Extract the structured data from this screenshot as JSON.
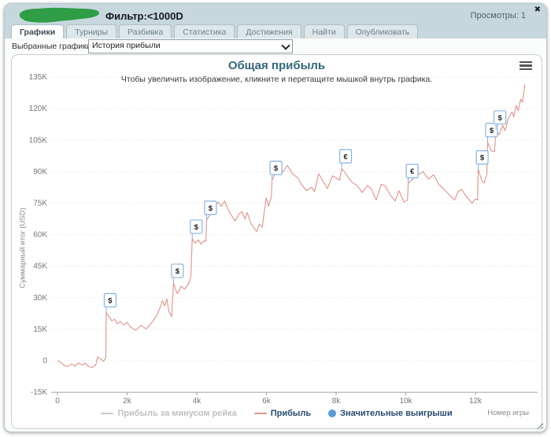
{
  "header": {
    "redacted_name": "(закрашенное имя игрока)",
    "filter": "Фильтр:<1000D",
    "views": "Просмотры: 1",
    "close_glyph": "✖"
  },
  "tabs": {
    "items": [
      {
        "label": "Графики",
        "active": true
      },
      {
        "label": "Турниры",
        "active": false
      },
      {
        "label": "Разбивка",
        "active": false
      },
      {
        "label": "Статистика",
        "active": false
      },
      {
        "label": "Достижения",
        "active": false
      },
      {
        "label": "Найти",
        "active": false
      },
      {
        "label": "Опубликовать",
        "active": false
      }
    ]
  },
  "chart_picker": {
    "label": "Выбранные графики:",
    "selected": "История прибыли"
  },
  "chart_data": {
    "type": "line",
    "title": "Общая прибыль",
    "subtitle": "Чтобы увеличить изображение, кликните и перетащите мышкой внутрь графика.",
    "xlabel": "Номер игры",
    "ylabel": "Суммарный итог (USD)",
    "xlim": [
      0,
      13600
    ],
    "ylim": [
      -15000,
      135000
    ],
    "x_tick_values": [
      0,
      2000,
      4000,
      6000,
      8000,
      10000,
      12000
    ],
    "x_ticks": [
      "0",
      "2k",
      "4k",
      "6k",
      "8k",
      "10k",
      "12k"
    ],
    "y_tick_values": [
      -15000,
      0,
      15000,
      30000,
      45000,
      60000,
      75000,
      90000,
      105000,
      120000,
      135000
    ],
    "y_ticks": [
      "-15K",
      "0",
      "15K",
      "30K",
      "45K",
      "60K",
      "75K",
      "90K",
      "105K",
      "120K",
      "135K"
    ],
    "grid": "horizontal-dotted",
    "legend_position": "bottom",
    "series": [
      {
        "name": "Прибыль за минусом рейка",
        "color": "#c8c8c8",
        "visible": false,
        "points": []
      },
      {
        "name": "Прибыль",
        "color": "#e09289",
        "visible": true,
        "points": [
          [
            0,
            0
          ],
          [
            100,
            -800
          ],
          [
            200,
            -2200
          ],
          [
            300,
            -2800
          ],
          [
            400,
            -1500
          ],
          [
            500,
            -2500
          ],
          [
            600,
            -1000
          ],
          [
            700,
            -2000
          ],
          [
            800,
            -1200
          ],
          [
            900,
            -2800
          ],
          [
            1000,
            -3200
          ],
          [
            1100,
            -2000
          ],
          [
            1150,
            1800
          ],
          [
            1250,
            800
          ],
          [
            1320,
            -300
          ],
          [
            1390,
            1500
          ],
          [
            1400,
            23000
          ],
          [
            1480,
            21000
          ],
          [
            1560,
            19000
          ],
          [
            1640,
            19800
          ],
          [
            1720,
            17500
          ],
          [
            1800,
            18800
          ],
          [
            1900,
            17000
          ],
          [
            2000,
            18200
          ],
          [
            2100,
            16000
          ],
          [
            2250,
            14500
          ],
          [
            2400,
            16800
          ],
          [
            2550,
            15200
          ],
          [
            2700,
            18000
          ],
          [
            2850,
            21500
          ],
          [
            2950,
            25500
          ],
          [
            3020,
            28500
          ],
          [
            3080,
            26000
          ],
          [
            3140,
            29500
          ],
          [
            3200,
            23500
          ],
          [
            3280,
            21000
          ],
          [
            3330,
            37000
          ],
          [
            3400,
            33500
          ],
          [
            3450,
            32000
          ],
          [
            3550,
            35500
          ],
          [
            3650,
            34000
          ],
          [
            3760,
            36500
          ],
          [
            3830,
            40000
          ],
          [
            3870,
            58000
          ],
          [
            3950,
            56000
          ],
          [
            4050,
            57500
          ],
          [
            4120,
            55500
          ],
          [
            4200,
            57000
          ],
          [
            4260,
            57000
          ],
          [
            4280,
            67000
          ],
          [
            4400,
            70000
          ],
          [
            4500,
            73500
          ],
          [
            4620,
            75500
          ],
          [
            4700,
            73500
          ],
          [
            4800,
            76000
          ],
          [
            4900,
            72000
          ],
          [
            5000,
            69000
          ],
          [
            5100,
            66500
          ],
          [
            5200,
            69500
          ],
          [
            5300,
            71000
          ],
          [
            5380,
            67500
          ],
          [
            5450,
            70500
          ],
          [
            5550,
            65500
          ],
          [
            5650,
            63000
          ],
          [
            5720,
            61500
          ],
          [
            5800,
            65000
          ],
          [
            5880,
            63500
          ],
          [
            5990,
            77500
          ],
          [
            6060,
            73500
          ],
          [
            6140,
            78000
          ],
          [
            6160,
            86000
          ],
          [
            6300,
            91000
          ],
          [
            6450,
            89500
          ],
          [
            6600,
            93000
          ],
          [
            6750,
            89000
          ],
          [
            6900,
            87000
          ],
          [
            7000,
            84000
          ],
          [
            7150,
            81000
          ],
          [
            7300,
            82500
          ],
          [
            7380,
            80500
          ],
          [
            7500,
            89000
          ],
          [
            7620,
            85500
          ],
          [
            7750,
            82000
          ],
          [
            7900,
            88000
          ],
          [
            8000,
            87000
          ],
          [
            8100,
            86000
          ],
          [
            8160,
            91500
          ],
          [
            8300,
            88500
          ],
          [
            8450,
            85000
          ],
          [
            8600,
            83500
          ],
          [
            8750,
            80000
          ],
          [
            8900,
            83500
          ],
          [
            9000,
            82000
          ],
          [
            9150,
            76500
          ],
          [
            9300,
            84000
          ],
          [
            9420,
            83000
          ],
          [
            9550,
            79000
          ],
          [
            9700,
            76000
          ],
          [
            9800,
            81000
          ],
          [
            9950,
            75500
          ],
          [
            10050,
            76500
          ],
          [
            10070,
            84500
          ],
          [
            10200,
            86500
          ],
          [
            10350,
            88500
          ],
          [
            10500,
            90000
          ],
          [
            10650,
            86500
          ],
          [
            10800,
            88500
          ],
          [
            10950,
            84000
          ],
          [
            11100,
            81500
          ],
          [
            11250,
            79000
          ],
          [
            11400,
            76500
          ],
          [
            11500,
            80500
          ],
          [
            11600,
            81500
          ],
          [
            11750,
            78000
          ],
          [
            11900,
            75000
          ],
          [
            12000,
            77000
          ],
          [
            12060,
            76500
          ],
          [
            12080,
            91000
          ],
          [
            12180,
            86000
          ],
          [
            12250,
            84500
          ],
          [
            12330,
            89000
          ],
          [
            12350,
            104000
          ],
          [
            12450,
            100000
          ],
          [
            12550,
            99500
          ],
          [
            12590,
            110000
          ],
          [
            12680,
            107500
          ],
          [
            12780,
            112000
          ],
          [
            12850,
            109500
          ],
          [
            12950,
            115500
          ],
          [
            13050,
            118500
          ],
          [
            13100,
            116000
          ],
          [
            13170,
            121500
          ],
          [
            13230,
            119000
          ],
          [
            13300,
            124500
          ],
          [
            13350,
            123000
          ],
          [
            13420,
            131500
          ]
        ]
      },
      {
        "name": "Значительные выигрыши",
        "color": "#5b9cd9",
        "visible": true,
        "type": "flags",
        "points": [
          {
            "x": 1400,
            "y": 23000,
            "symbol": "$"
          },
          {
            "x": 3330,
            "y": 37000,
            "symbol": "$"
          },
          {
            "x": 3870,
            "y": 58000,
            "symbol": "$"
          },
          {
            "x": 4280,
            "y": 67000,
            "symbol": "$"
          },
          {
            "x": 6160,
            "y": 86000,
            "symbol": "$"
          },
          {
            "x": 8160,
            "y": 91500,
            "symbol": "€"
          },
          {
            "x": 10070,
            "y": 84500,
            "symbol": "€"
          },
          {
            "x": 12080,
            "y": 91000,
            "symbol": "$"
          },
          {
            "x": 12350,
            "y": 104000,
            "symbol": "$"
          },
          {
            "x": 12590,
            "y": 110000,
            "symbol": "$"
          }
        ]
      }
    ],
    "colors": {
      "grid": "#dcdcdc",
      "axis": "#9aa4a8",
      "tick_label": "#767676",
      "flag_border": "#85b3e2",
      "flag_fill": "#ffffff",
      "flag_glyph": "#222222"
    }
  }
}
